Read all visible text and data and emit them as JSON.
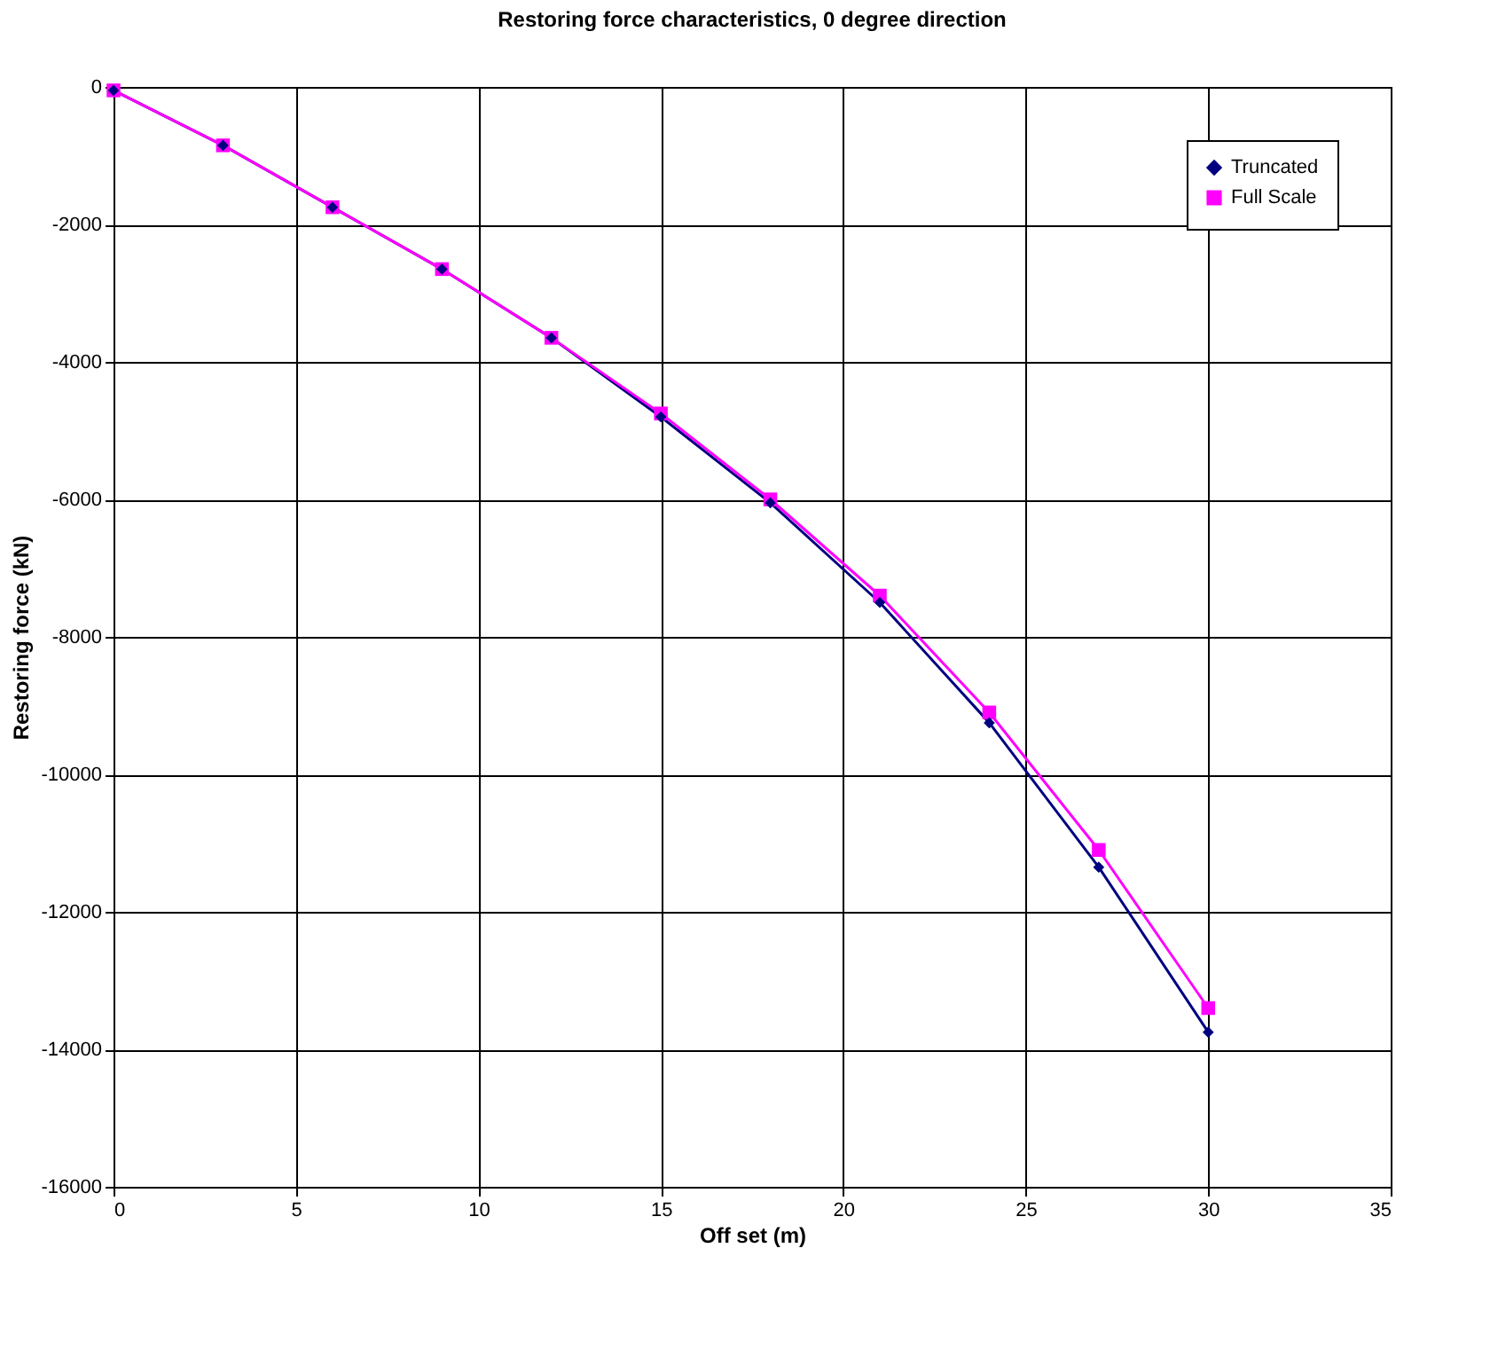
{
  "chart_data": {
    "type": "line",
    "title": "Restoring force characteristics, 0 degree direction",
    "xlabel": "Off set (m)",
    "ylabel": "Restoring force (kN)",
    "x": [
      0,
      3,
      6,
      9,
      12,
      15,
      18,
      21,
      24,
      27,
      30
    ],
    "series": [
      {
        "name": "Truncated",
        "color": "#000080",
        "marker": "diamond",
        "values": [
          -50,
          -850,
          -1750,
          -2650,
          -3650,
          -4800,
          -6050,
          -7500,
          -9250,
          -11350,
          -13750
        ]
      },
      {
        "name": "Full Scale",
        "color": "#ff00ff",
        "marker": "square",
        "values": [
          -50,
          -850,
          -1750,
          -2650,
          -3650,
          -4750,
          -6000,
          -7400,
          -9100,
          -11100,
          -13400
        ]
      }
    ],
    "xlim": [
      0,
      35
    ],
    "xticks": [
      0,
      5,
      10,
      15,
      20,
      25,
      30,
      35
    ],
    "ylim": [
      -16000,
      0
    ],
    "yticks": [
      -16000,
      -14000,
      -12000,
      -10000,
      -8000,
      -6000,
      -4000,
      -2000,
      0
    ],
    "grid": true,
    "legend": "top right",
    "line_style": "solid"
  }
}
